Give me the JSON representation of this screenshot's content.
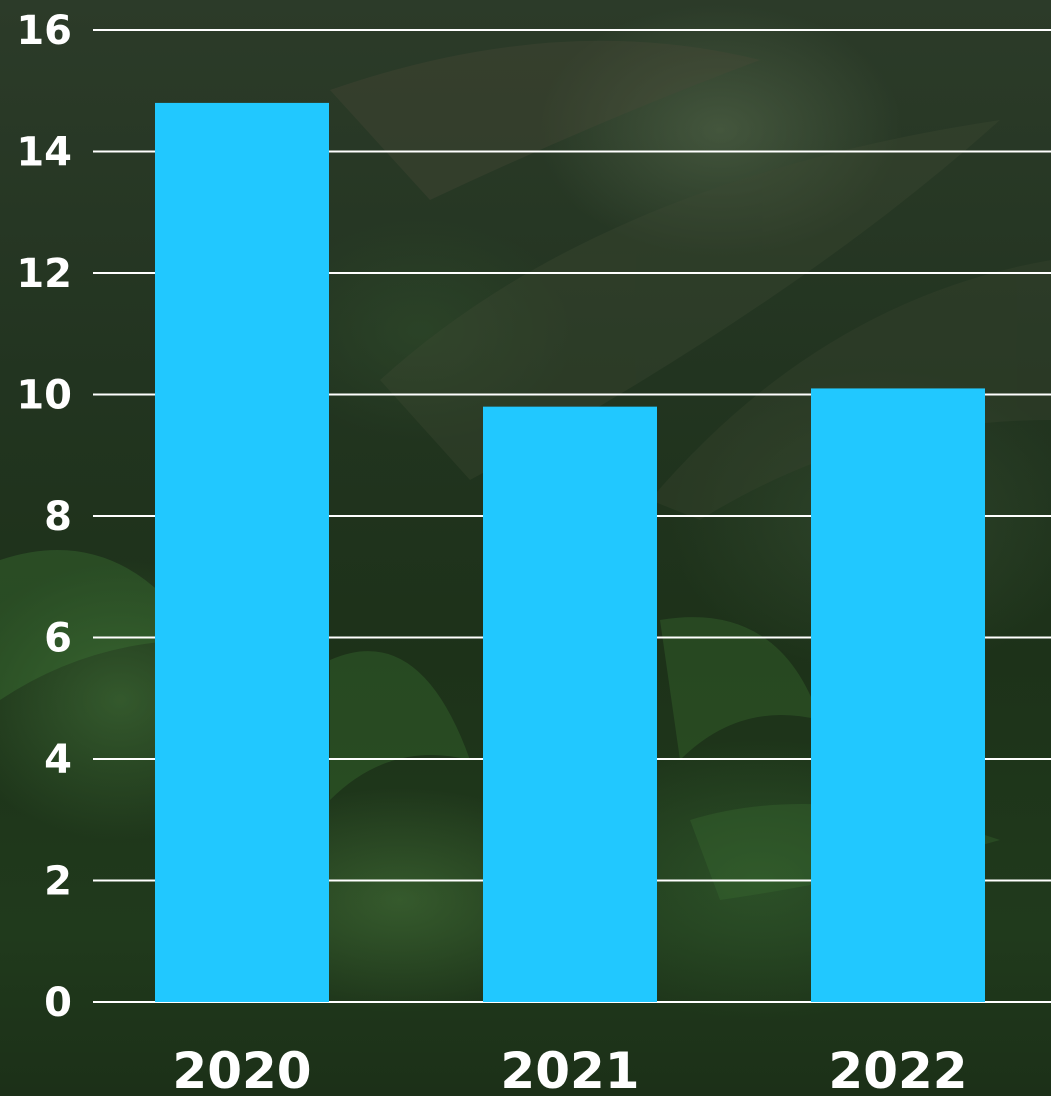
{
  "colors": {
    "bar": "#21c8ff",
    "grid": "#ffffff",
    "text": "#ffffff",
    "background": "forest-photo"
  },
  "chart_data": {
    "type": "bar",
    "title": "",
    "xlabel": "",
    "ylabel": "",
    "categories": [
      "2020",
      "2021",
      "2022"
    ],
    "values": [
      14.8,
      9.8,
      10.1
    ],
    "ylim": [
      0,
      16
    ],
    "yticks": [
      "0",
      "2",
      "4",
      "6",
      "8",
      "10",
      "12",
      "14",
      "16"
    ],
    "grid": "horizontal",
    "legend": "none"
  }
}
